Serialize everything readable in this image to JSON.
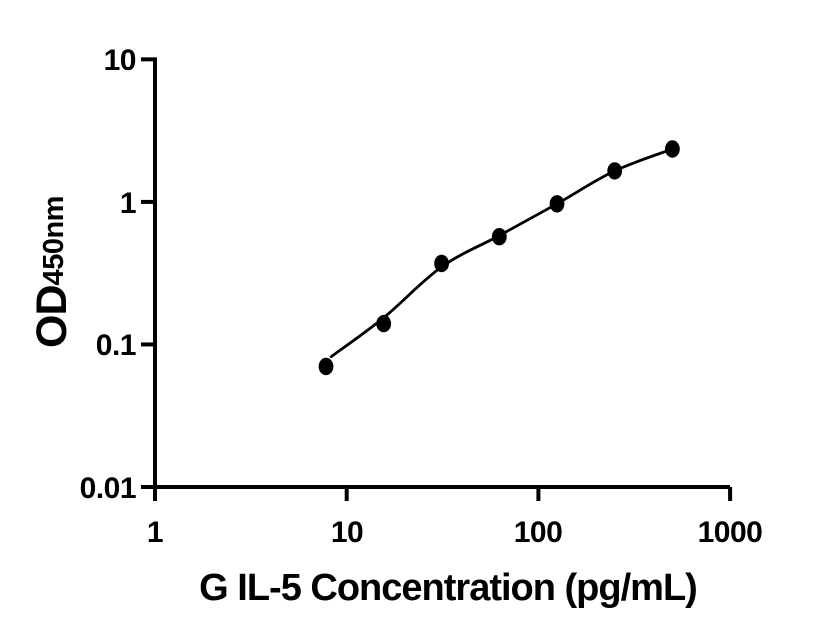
{
  "figure": {
    "background_color": "#ffffff",
    "ink_color": "#000000"
  },
  "chart_data": {
    "type": "scatter",
    "title": "",
    "xlabel": "G IL-5 Concentration (pg/mL)",
    "ylabel": "OD",
    "ylabel_subscript": "450nm",
    "x_scale": "log",
    "y_scale": "log",
    "xlim": [
      1,
      1000
    ],
    "ylim": [
      0.01,
      10
    ],
    "grid": false,
    "legend_position": "none",
    "x_ticks": [
      1,
      10,
      100,
      1000
    ],
    "x_tick_labels": [
      "1",
      "10",
      "100",
      "1000"
    ],
    "y_ticks": [
      10,
      1,
      0.1,
      0.01
    ],
    "y_tick_labels": [
      "10",
      "1",
      "0.1",
      "0.01"
    ],
    "series": [
      {
        "name": "standard-points",
        "type": "scatter",
        "marker": "filled-ellipse",
        "color": "#000000",
        "x": [
          7.8,
          15.6,
          31.25,
          62.5,
          125,
          250,
          500
        ],
        "y": [
          0.07,
          0.14,
          0.37,
          0.57,
          0.97,
          1.65,
          2.35
        ]
      },
      {
        "name": "fit-curve",
        "type": "line",
        "color": "#000000",
        "x": [
          8.3,
          15.6,
          31.25,
          62.5,
          125,
          250,
          500
        ],
        "y": [
          0.082,
          0.154,
          0.35,
          0.58,
          0.97,
          1.65,
          2.35
        ]
      }
    ]
  }
}
